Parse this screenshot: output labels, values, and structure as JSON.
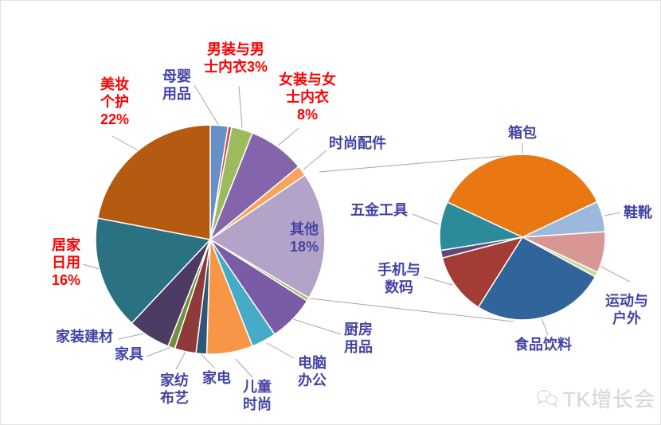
{
  "chart_data": [
    {
      "type": "pie",
      "role": "main-pie",
      "title": "",
      "start_angle": 0,
      "units": "percent",
      "slices": [
        {
          "label": "母婴用品",
          "value": 2.5,
          "color": "#6590C8",
          "label_color": "#4343A6",
          "label_lines": [
            "母婴",
            "用品"
          ]
        },
        {
          "label": "",
          "value": 0.5,
          "color": "#C0504D",
          "label_color": "",
          "label_lines": []
        },
        {
          "label": "男装与男士内衣",
          "value": 3,
          "color": "#9CBB5C",
          "label_color": "#FF0000",
          "label_lines": [
            "男装与男",
            "士内衣3%"
          ]
        },
        {
          "label": "女装与女士内衣",
          "value": 8,
          "color": "#8465AB",
          "label_color": "#FF0000",
          "label_lines": [
            "女装与女",
            "士内衣",
            "8%"
          ]
        },
        {
          "label": "时尚配件",
          "value": 1.5,
          "color": "#F8A45C",
          "label_color": "#4343A6",
          "label_lines": [
            "时尚配件"
          ]
        },
        {
          "label": "其他",
          "value": 18,
          "color": "#B4A3C9",
          "label_color": "#4343A6",
          "label_lines": [
            "其他",
            "18%"
          ]
        },
        {
          "label": "",
          "value": 0.5,
          "color": "#A8C168",
          "label_color": "",
          "label_lines": []
        },
        {
          "label": "厨房用品",
          "value": 6.5,
          "color": "#7A5BA5",
          "label_color": "#4343A6",
          "label_lines": [
            "厨房",
            "用品"
          ]
        },
        {
          "label": "电脑办公",
          "value": 3.5,
          "color": "#45ABC6",
          "label_color": "#4343A6",
          "label_lines": [
            "电脑",
            "办公"
          ]
        },
        {
          "label": "儿童时尚",
          "value": 6.5,
          "color": "#F79646",
          "label_color": "#4343A6",
          "label_lines": [
            "儿童",
            "时尚"
          ]
        },
        {
          "label": "家电",
          "value": 1.5,
          "color": "#2F5878",
          "label_color": "#4343A6",
          "label_lines": [
            "家电"
          ]
        },
        {
          "label": "家纺布艺",
          "value": 3,
          "color": "#8E3A38",
          "label_color": "#4343A6",
          "label_lines": [
            "家纺",
            "布艺"
          ]
        },
        {
          "label": "家具",
          "value": 1,
          "color": "#71903C",
          "label_color": "#4343A6",
          "label_lines": [
            "家具"
          ]
        },
        {
          "label": "家装建材",
          "value": 6,
          "color": "#4C3B63",
          "label_color": "#4343A6",
          "label_lines": [
            "家装建材"
          ]
        },
        {
          "label": "居家日用",
          "value": 16,
          "color": "#2A7182",
          "label_color": "#FF0000",
          "label_lines": [
            "居家",
            "日用",
            "16%"
          ]
        },
        {
          "label": "美妆个护",
          "value": 22,
          "color": "#B45A11",
          "label_color": "#FF0000",
          "label_lines": [
            "美妆",
            "个护",
            "22%"
          ]
        }
      ]
    },
    {
      "type": "pie",
      "role": "secondary-pie",
      "note": "breakdown of 其他 18% (pie-of-pie)",
      "start_angle": 295,
      "units": "percent",
      "slices": [
        {
          "label": "箱包",
          "value": 36,
          "color": "#EA7812",
          "label_color": "#4343A6",
          "label_lines": [
            "箱包"
          ]
        },
        {
          "label": "鞋靴",
          "value": 6,
          "color": "#9CB8DC",
          "label_color": "#4343A6",
          "label_lines": [
            "鞋靴"
          ]
        },
        {
          "label": "运动与户外",
          "value": 8,
          "color": "#D89795",
          "label_color": "#4343A6",
          "label_lines": [
            "运动与",
            "户外"
          ]
        },
        {
          "label": "",
          "value": 1,
          "color": "#C6DA9E",
          "label_color": "",
          "label_lines": []
        },
        {
          "label": "食品饮料",
          "value": 26,
          "color": "#30649B",
          "label_color": "#4343A6",
          "label_lines": [
            "食品饮料"
          ]
        },
        {
          "label": "手机与数码",
          "value": 12,
          "color": "#A33C35",
          "label_color": "#4343A6",
          "label_lines": [
            "手机与",
            "数码"
          ]
        },
        {
          "label": "",
          "value": 1.5,
          "color": "#5E4878",
          "label_color": "",
          "label_lines": []
        },
        {
          "label": "五金工具",
          "value": 9.5,
          "color": "#2C8B9B",
          "label_color": "#4343A6",
          "label_lines": [
            "五金工具"
          ]
        }
      ]
    }
  ],
  "pie_of_pie": true,
  "legend": "none",
  "watermark": {
    "text": "TK增长会"
  },
  "colors": {
    "background": "#FFFFFF",
    "label_default": "#4343A6",
    "label_highlight": "#FF0000",
    "leader_line": "#A6A6A6",
    "slice_border": "#FFFFFF",
    "watermark": "#D8D8D8"
  }
}
